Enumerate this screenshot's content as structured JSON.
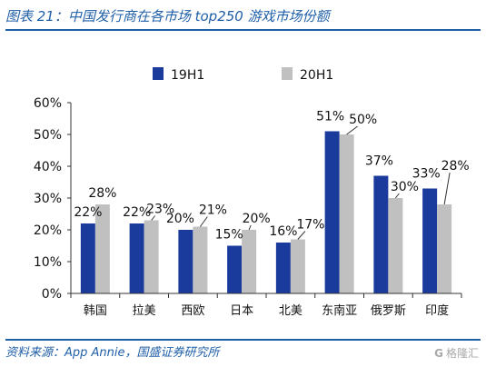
{
  "header": {
    "title": "图表 21：中国发行商在各市场 top250 游戏市场份额"
  },
  "footer": {
    "source": "资料来源：App Annie，国盛证券研究所"
  },
  "watermark": {
    "text": "格隆汇"
  },
  "colors": {
    "series_19h1": "#1a3a9c",
    "series_20h1": "#c0c0c0",
    "accent": "#1f5fa8"
  },
  "chart_data": {
    "type": "bar",
    "title": "",
    "xlabel": "",
    "ylabel": "",
    "categories": [
      "韩国",
      "拉美",
      "西欧",
      "日本",
      "北美",
      "东南亚",
      "俄罗斯",
      "印度"
    ],
    "series": [
      {
        "name": "19H1",
        "values": [
          22,
          22,
          20,
          15,
          16,
          51,
          37,
          33
        ],
        "labels": [
          "22%",
          "22%",
          "20%",
          "15%",
          "16%",
          "51%",
          "37%",
          "33%"
        ]
      },
      {
        "name": "20H1",
        "values": [
          28,
          23,
          21,
          20,
          17,
          50,
          30,
          28
        ],
        "labels": [
          "28%",
          "23%",
          "21%",
          "20%",
          "17%",
          "50%",
          "30%",
          "28%"
        ]
      }
    ],
    "ylim": [
      0,
      60
    ],
    "yticks": [
      0,
      10,
      20,
      30,
      40,
      50,
      60
    ],
    "ytick_labels": [
      "0%",
      "10%",
      "20%",
      "30%",
      "40%",
      "50%",
      "60%"
    ],
    "grid": false,
    "legend": "top-center"
  }
}
